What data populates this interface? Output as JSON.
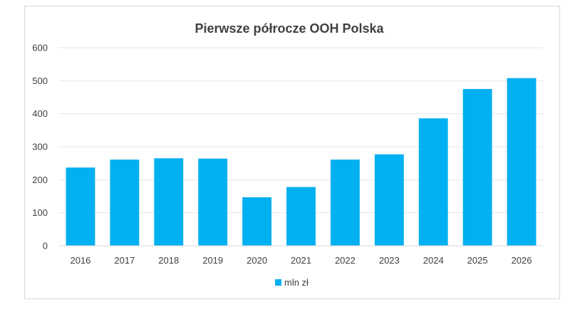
{
  "chart_data": {
    "type": "bar",
    "title": "Pierwsze półrocze OOH Polska",
    "categories": [
      "2016",
      "2017",
      "2018",
      "2019",
      "2020",
      "2021",
      "2022",
      "2023",
      "2024",
      "2025",
      "2026"
    ],
    "series": [
      {
        "name": "mln zł",
        "values": [
          237,
          261,
          265,
          264,
          147,
          178,
          261,
          277,
          386,
          475,
          508
        ],
        "color": "#00b0f0"
      }
    ],
    "xlabel": "",
    "ylabel": "",
    "ylim": [
      0,
      600
    ],
    "yticks": [
      0,
      100,
      200,
      300,
      400,
      500,
      600
    ],
    "grid": true,
    "legend": "bottom"
  }
}
